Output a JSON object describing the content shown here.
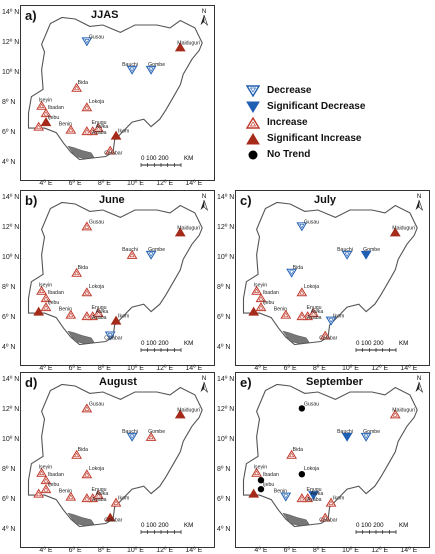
{
  "panels": [
    {
      "label": "a)",
      "title": "JJAS",
      "stations": [
        {
          "name": "Gusau",
          "lon": 6.7,
          "lat": 12.2,
          "trend": "decrease"
        },
        {
          "name": "Maiduguri",
          "lon": 13.1,
          "lat": 11.8,
          "trend": "sig_increase"
        },
        {
          "name": "Bauchi",
          "lon": 9.8,
          "lat": 10.3,
          "trend": "decrease"
        },
        {
          "name": "Gombe",
          "lon": 11.1,
          "lat": 10.3,
          "trend": "decrease"
        },
        {
          "name": "Bida",
          "lon": 6.0,
          "lat": 9.1,
          "trend": "increase"
        },
        {
          "name": "Iseyin",
          "lon": 3.6,
          "lat": 7.9,
          "trend": "increase"
        },
        {
          "name": "Ibadan",
          "lon": 3.9,
          "lat": 7.4,
          "trend": "increase"
        },
        {
          "name": "Lokoja",
          "lon": 6.7,
          "lat": 7.8,
          "trend": "increase"
        },
        {
          "name": "Ijebu",
          "lon": 3.9,
          "lat": 6.8,
          "trend": "sig_increase"
        },
        {
          "name": "Benin",
          "lon": 5.6,
          "lat": 6.3,
          "trend": "increase"
        },
        {
          "name": "Enugu",
          "lon": 7.5,
          "lat": 6.4,
          "trend": "increase"
        },
        {
          "name": "Awka",
          "lon": 7.1,
          "lat": 6.2,
          "trend": "increase"
        },
        {
          "name": "Asaba",
          "lon": 6.7,
          "lat": 6.2,
          "trend": "increase"
        },
        {
          "name": "Ikom",
          "lon": 8.7,
          "lat": 5.9,
          "trend": "sig_increase"
        },
        {
          "name": "Calabar",
          "lon": 8.3,
          "lat": 4.9,
          "trend": "increase"
        },
        {
          "name": "Lagos",
          "lon": 3.4,
          "lat": 6.5,
          "trend": "increase"
        }
      ]
    },
    {
      "label": "b)",
      "title": "June",
      "stations": [
        {
          "name": "Gusau",
          "lon": 6.7,
          "lat": 12.2,
          "trend": "increase"
        },
        {
          "name": "Maiduguri",
          "lon": 13.1,
          "lat": 11.8,
          "trend": "sig_increase"
        },
        {
          "name": "Bauchi",
          "lon": 9.8,
          "lat": 10.3,
          "trend": "increase"
        },
        {
          "name": "Gombe",
          "lon": 11.1,
          "lat": 10.3,
          "trend": "decrease"
        },
        {
          "name": "Bida",
          "lon": 6.0,
          "lat": 9.1,
          "trend": "increase"
        },
        {
          "name": "Iseyin",
          "lon": 3.6,
          "lat": 7.9,
          "trend": "increase"
        },
        {
          "name": "Ibadan",
          "lon": 3.9,
          "lat": 7.4,
          "trend": "increase"
        },
        {
          "name": "Lokoja",
          "lon": 6.7,
          "lat": 7.8,
          "trend": "increase"
        },
        {
          "name": "Ijebu",
          "lon": 3.9,
          "lat": 6.8,
          "trend": "increase"
        },
        {
          "name": "Benin",
          "lon": 5.6,
          "lat": 6.3,
          "trend": "increase"
        },
        {
          "name": "Enugu",
          "lon": 7.5,
          "lat": 6.4,
          "trend": "increase"
        },
        {
          "name": "Awka",
          "lon": 7.1,
          "lat": 6.2,
          "trend": "increase"
        },
        {
          "name": "Asaba",
          "lon": 6.7,
          "lat": 6.2,
          "trend": "increase"
        },
        {
          "name": "Ikom",
          "lon": 8.7,
          "lat": 5.9,
          "trend": "sig_increase"
        },
        {
          "name": "Calabar",
          "lon": 8.3,
          "lat": 4.9,
          "trend": "decrease"
        },
        {
          "name": "Lagos",
          "lon": 3.4,
          "lat": 6.5,
          "trend": "sig_increase"
        }
      ]
    },
    {
      "label": "c)",
      "title": "July",
      "stations": [
        {
          "name": "Gusau",
          "lon": 6.7,
          "lat": 12.2,
          "trend": "decrease"
        },
        {
          "name": "Maiduguri",
          "lon": 13.1,
          "lat": 11.8,
          "trend": "sig_increase"
        },
        {
          "name": "Bauchi",
          "lon": 9.8,
          "lat": 10.3,
          "trend": "decrease"
        },
        {
          "name": "Gombe",
          "lon": 11.1,
          "lat": 10.3,
          "trend": "sig_decrease"
        },
        {
          "name": "Bida",
          "lon": 6.0,
          "lat": 9.1,
          "trend": "decrease"
        },
        {
          "name": "Iseyin",
          "lon": 3.6,
          "lat": 7.9,
          "trend": "increase"
        },
        {
          "name": "Ibadan",
          "lon": 3.9,
          "lat": 7.4,
          "trend": "increase"
        },
        {
          "name": "Lokoja",
          "lon": 6.7,
          "lat": 7.8,
          "trend": "increase"
        },
        {
          "name": "Ijebu",
          "lon": 3.9,
          "lat": 6.8,
          "trend": "increase"
        },
        {
          "name": "Benin",
          "lon": 5.6,
          "lat": 6.3,
          "trend": "increase"
        },
        {
          "name": "Enugu",
          "lon": 7.5,
          "lat": 6.4,
          "trend": "increase"
        },
        {
          "name": "Awka",
          "lon": 7.1,
          "lat": 6.2,
          "trend": "increase"
        },
        {
          "name": "Asaba",
          "lon": 6.7,
          "lat": 6.2,
          "trend": "increase"
        },
        {
          "name": "Ikom",
          "lon": 8.7,
          "lat": 5.9,
          "trend": "decrease"
        },
        {
          "name": "Calabar",
          "lon": 8.3,
          "lat": 4.9,
          "trend": "increase"
        },
        {
          "name": "Lagos",
          "lon": 3.4,
          "lat": 6.5,
          "trend": "sig_increase"
        }
      ]
    },
    {
      "label": "d)",
      "title": "August",
      "stations": [
        {
          "name": "Gusau",
          "lon": 6.7,
          "lat": 12.2,
          "trend": "increase"
        },
        {
          "name": "Maiduguri",
          "lon": 13.1,
          "lat": 11.8,
          "trend": "sig_increase"
        },
        {
          "name": "Bauchi",
          "lon": 9.8,
          "lat": 10.3,
          "trend": "decrease"
        },
        {
          "name": "Gombe",
          "lon": 11.1,
          "lat": 10.3,
          "trend": "increase"
        },
        {
          "name": "Bida",
          "lon": 6.0,
          "lat": 9.1,
          "trend": "increase"
        },
        {
          "name": "Iseyin",
          "lon": 3.6,
          "lat": 7.9,
          "trend": "increase"
        },
        {
          "name": "Ibadan",
          "lon": 3.9,
          "lat": 7.4,
          "trend": "increase"
        },
        {
          "name": "Lokoja",
          "lon": 6.7,
          "lat": 7.8,
          "trend": "increase"
        },
        {
          "name": "Ijebu",
          "lon": 3.9,
          "lat": 6.8,
          "trend": "increase"
        },
        {
          "name": "Benin",
          "lon": 5.6,
          "lat": 6.3,
          "trend": "increase"
        },
        {
          "name": "Enugu",
          "lon": 7.5,
          "lat": 6.4,
          "trend": "increase"
        },
        {
          "name": "Awka",
          "lon": 7.1,
          "lat": 6.2,
          "trend": "increase"
        },
        {
          "name": "Asaba",
          "lon": 6.7,
          "lat": 6.2,
          "trend": "increase"
        },
        {
          "name": "Ikom",
          "lon": 8.7,
          "lat": 5.9,
          "trend": "increase"
        },
        {
          "name": "Calabar",
          "lon": 8.3,
          "lat": 4.9,
          "trend": "sig_increase"
        },
        {
          "name": "Lagos",
          "lon": 3.4,
          "lat": 6.5,
          "trend": "increase"
        }
      ]
    },
    {
      "label": "e)",
      "title": "September",
      "stations": [
        {
          "name": "Gusau",
          "lon": 6.7,
          "lat": 12.2,
          "trend": "no_trend"
        },
        {
          "name": "Maiduguri",
          "lon": 13.1,
          "lat": 11.8,
          "trend": "increase"
        },
        {
          "name": "Bauchi",
          "lon": 9.8,
          "lat": 10.3,
          "trend": "sig_decrease"
        },
        {
          "name": "Gombe",
          "lon": 11.1,
          "lat": 10.3,
          "trend": "decrease"
        },
        {
          "name": "Bida",
          "lon": 6.0,
          "lat": 9.1,
          "trend": "increase"
        },
        {
          "name": "Iseyin",
          "lon": 3.6,
          "lat": 7.9,
          "trend": "increase"
        },
        {
          "name": "Ibadan",
          "lon": 3.9,
          "lat": 7.4,
          "trend": "no_trend"
        },
        {
          "name": "Lokoja",
          "lon": 6.7,
          "lat": 7.8,
          "trend": "no_trend"
        },
        {
          "name": "Ijebu",
          "lon": 3.9,
          "lat": 6.8,
          "trend": "no_trend"
        },
        {
          "name": "Benin",
          "lon": 5.6,
          "lat": 6.3,
          "trend": "decrease"
        },
        {
          "name": "Enugu",
          "lon": 7.5,
          "lat": 6.4,
          "trend": "sig_decrease"
        },
        {
          "name": "Awka",
          "lon": 7.1,
          "lat": 6.2,
          "trend": "increase"
        },
        {
          "name": "Asaba",
          "lon": 6.7,
          "lat": 6.2,
          "trend": "increase"
        },
        {
          "name": "Ikom",
          "lon": 8.7,
          "lat": 5.9,
          "trend": "increase"
        },
        {
          "name": "Calabar",
          "lon": 8.3,
          "lat": 4.9,
          "trend": "increase"
        },
        {
          "name": "Lagos",
          "lon": 3.4,
          "lat": 6.5,
          "trend": "sig_increase"
        }
      ]
    }
  ],
  "lat_labels": [
    "14º N",
    "12º N",
    "10º N",
    "8º N",
    "6º N",
    "4º N"
  ],
  "lon_labels": [
    "4º E",
    "6º E",
    "8º E",
    "10º E",
    "12º E",
    "14º E"
  ],
  "scale_bar": {
    "labels": "0  100 200",
    "unit": "KM"
  },
  "north_label": "N",
  "legend": [
    {
      "key": "decrease",
      "label": "Decrease"
    },
    {
      "key": "sig_decrease",
      "label": "Significant Decrease"
    },
    {
      "key": "increase",
      "label": "Increase"
    },
    {
      "key": "sig_increase",
      "label": "Significant Increase"
    },
    {
      "key": "no_trend",
      "label": "No Trend"
    }
  ],
  "colors": {
    "decrease": "#1f5fb4",
    "sig_decrease": "#1f5fb4",
    "increase": "#c0392b",
    "sig_increase": "#a52a1a",
    "no_trend": "#000000",
    "coast": "#555555"
  }
}
